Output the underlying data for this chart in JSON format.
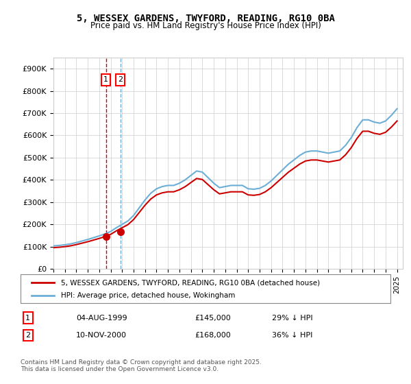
{
  "title": "5, WESSEX GARDENS, TWYFORD, READING, RG10 0BA",
  "subtitle": "Price paid vs. HM Land Registry's House Price Index (HPI)",
  "legend_line1": "5, WESSEX GARDENS, TWYFORD, READING, RG10 0BA (detached house)",
  "legend_line2": "HPI: Average price, detached house, Wokingham",
  "sale1_date": "04-AUG-1999",
  "sale1_price": 145000,
  "sale1_label": "29% ↓ HPI",
  "sale2_date": "10-NOV-2000",
  "sale2_price": 168000,
  "sale2_label": "36% ↓ HPI",
  "footer": "Contains HM Land Registry data © Crown copyright and database right 2025.\nThis data is licensed under the Open Government Licence v3.0.",
  "hpi_color": "#6baed6",
  "price_color": "#cc0000",
  "sale_marker_color": "#cc0000",
  "vline_color_1": "#cc0000",
  "vline_color_2": "#6baed6",
  "background_color": "#ffffff",
  "ylim": [
    0,
    950000
  ],
  "yticks": [
    0,
    100000,
    200000,
    300000,
    400000,
    500000,
    600000,
    700000,
    800000,
    900000
  ],
  "xlim_start": 1995.0,
  "xlim_end": 2025.5
}
